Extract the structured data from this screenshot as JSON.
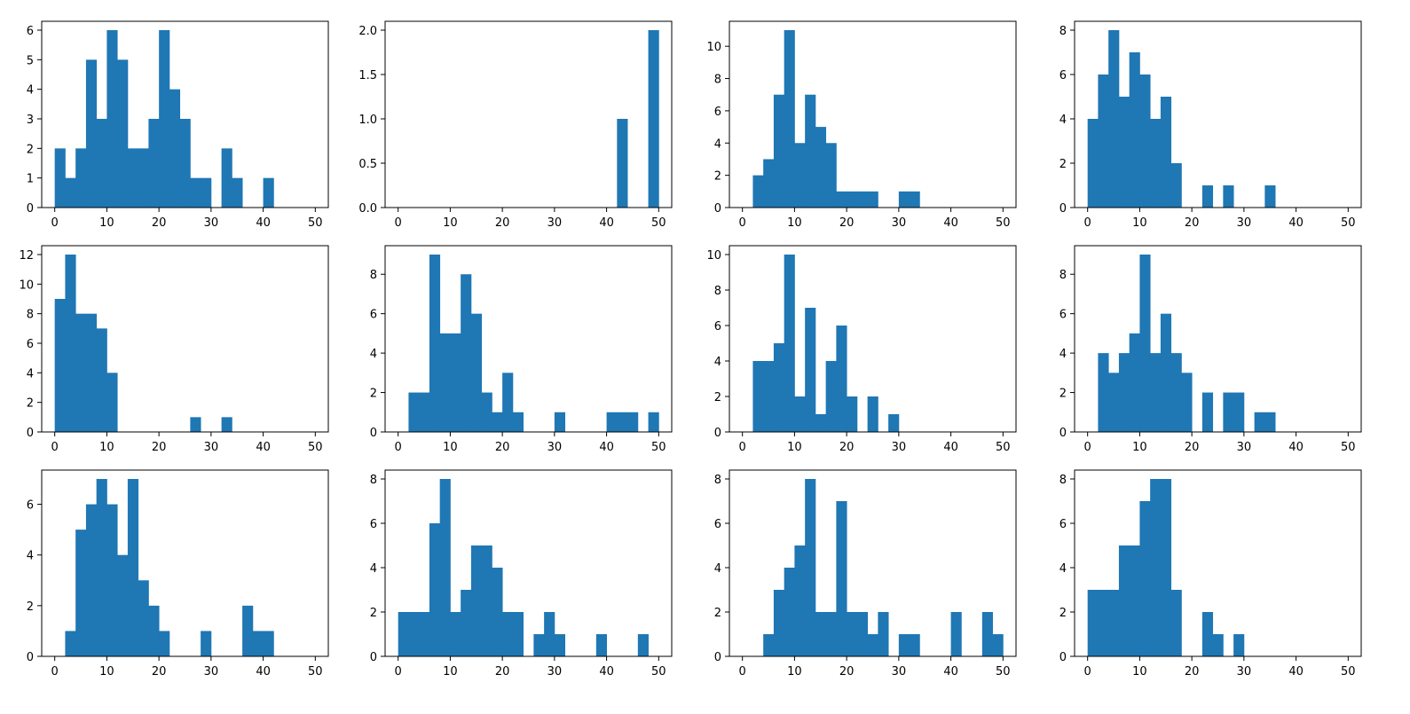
{
  "figure": {
    "background": "#ffffff",
    "bar_color": "#1f77b4"
  },
  "chart_data": [
    {
      "type": "bar",
      "bin_width": 2,
      "xlim": [
        -2.5,
        52.5
      ],
      "ylim": [
        0,
        6.3
      ],
      "xticks": [
        0,
        10,
        20,
        30,
        40,
        50
      ],
      "yticks": [
        0,
        1,
        2,
        3,
        4,
        5,
        6
      ],
      "bins_start": [
        0,
        2,
        4,
        6,
        8,
        10,
        12,
        14,
        16,
        18,
        20,
        22,
        24,
        26,
        28,
        30,
        32,
        34,
        36,
        38,
        40,
        42,
        44,
        46,
        48
      ],
      "values": [
        2,
        1,
        2,
        5,
        3,
        6,
        5,
        2,
        2,
        3,
        6,
        4,
        3,
        1,
        1,
        0,
        2,
        1,
        0,
        0,
        1,
        0,
        0,
        0,
        0
      ]
    },
    {
      "type": "bar",
      "bin_width": 2,
      "xlim": [
        -2.5,
        52.5
      ],
      "ylim": [
        0,
        2.1
      ],
      "xticks": [
        0,
        10,
        20,
        30,
        40,
        50
      ],
      "yticks": [
        0.0,
        0.5,
        1.0,
        1.5,
        2.0
      ],
      "ytick_labels": [
        "0.0",
        "0.5",
        "1.0",
        "1.5",
        "2.0"
      ],
      "bins_start": [
        0,
        2,
        4,
        6,
        8,
        10,
        12,
        14,
        16,
        18,
        20,
        22,
        24,
        26,
        28,
        30,
        32,
        34,
        36,
        38,
        40,
        42,
        44,
        46,
        48
      ],
      "values": [
        0,
        0,
        0,
        0,
        0,
        0,
        0,
        0,
        0,
        0,
        0,
        0,
        0,
        0,
        0,
        0,
        0,
        0,
        0,
        0,
        0,
        1,
        0,
        0,
        2
      ]
    },
    {
      "type": "bar",
      "bin_width": 2,
      "xlim": [
        -2.5,
        52.5
      ],
      "ylim": [
        0,
        11.55
      ],
      "xticks": [
        0,
        10,
        20,
        30,
        40,
        50
      ],
      "yticks": [
        0,
        2,
        4,
        6,
        8,
        10
      ],
      "bins_start": [
        0,
        2,
        4,
        6,
        8,
        10,
        12,
        14,
        16,
        18,
        20,
        22,
        24,
        26,
        28,
        30,
        32,
        34,
        36,
        38,
        40,
        42,
        44,
        46,
        48
      ],
      "values": [
        0,
        2,
        3,
        7,
        11,
        4,
        7,
        5,
        4,
        1,
        1,
        1,
        1,
        0,
        0,
        1,
        1,
        0,
        0,
        0,
        0,
        0,
        0,
        0,
        0
      ]
    },
    {
      "type": "bar",
      "bin_width": 2,
      "xlim": [
        -2.5,
        52.5
      ],
      "ylim": [
        0,
        8.4
      ],
      "xticks": [
        0,
        10,
        20,
        30,
        40,
        50
      ],
      "yticks": [
        0,
        2,
        4,
        6,
        8
      ],
      "bins_start": [
        0,
        2,
        4,
        6,
        8,
        10,
        12,
        14,
        16,
        18,
        20,
        22,
        24,
        26,
        28,
        30,
        32,
        34,
        36,
        38,
        40,
        42,
        44,
        46,
        48
      ],
      "values": [
        4,
        6,
        8,
        5,
        7,
        6,
        4,
        5,
        2,
        0,
        0,
        1,
        0,
        1,
        0,
        0,
        0,
        1,
        0,
        0,
        0,
        0,
        0,
        0,
        0
      ]
    },
    {
      "type": "bar",
      "bin_width": 2,
      "xlim": [
        -2.5,
        52.5
      ],
      "ylim": [
        0,
        12.6
      ],
      "xticks": [
        0,
        10,
        20,
        30,
        40,
        50
      ],
      "yticks": [
        0,
        2,
        4,
        6,
        8,
        10,
        12
      ],
      "bins_start": [
        0,
        2,
        4,
        6,
        8,
        10,
        12,
        14,
        16,
        18,
        20,
        22,
        24,
        26,
        28,
        30,
        32,
        34,
        36,
        38,
        40,
        42,
        44,
        46,
        48
      ],
      "values": [
        9,
        12,
        8,
        8,
        7,
        4,
        0,
        0,
        0,
        0,
        0,
        0,
        0,
        1,
        0,
        0,
        1,
        0,
        0,
        0,
        0,
        0,
        0,
        0,
        0
      ]
    },
    {
      "type": "bar",
      "bin_width": 2,
      "xlim": [
        -2.5,
        52.5
      ],
      "ylim": [
        0,
        9.45
      ],
      "xticks": [
        0,
        10,
        20,
        30,
        40,
        50
      ],
      "yticks": [
        0,
        2,
        4,
        6,
        8
      ],
      "bins_start": [
        0,
        2,
        4,
        6,
        8,
        10,
        12,
        14,
        16,
        18,
        20,
        22,
        24,
        26,
        28,
        30,
        32,
        34,
        36,
        38,
        40,
        42,
        44,
        46,
        48
      ],
      "values": [
        0,
        2,
        2,
        9,
        5,
        5,
        8,
        6,
        2,
        1,
        3,
        1,
        0,
        0,
        0,
        1,
        0,
        0,
        0,
        0,
        1,
        1,
        1,
        0,
        1
      ]
    },
    {
      "type": "bar",
      "bin_width": 2,
      "xlim": [
        -2.5,
        52.5
      ],
      "ylim": [
        0,
        10.5
      ],
      "xticks": [
        0,
        10,
        20,
        30,
        40,
        50
      ],
      "yticks": [
        0,
        2,
        4,
        6,
        8,
        10
      ],
      "bins_start": [
        0,
        2,
        4,
        6,
        8,
        10,
        12,
        14,
        16,
        18,
        20,
        22,
        24,
        26,
        28,
        30,
        32,
        34,
        36,
        38,
        40,
        42,
        44,
        46,
        48
      ],
      "values": [
        0,
        4,
        4,
        5,
        10,
        2,
        7,
        1,
        4,
        6,
        2,
        0,
        2,
        0,
        1,
        0,
        0,
        0,
        0,
        0,
        0,
        0,
        0,
        0,
        0
      ]
    },
    {
      "type": "bar",
      "bin_width": 2,
      "xlim": [
        -2.5,
        52.5
      ],
      "ylim": [
        0,
        9.45
      ],
      "xticks": [
        0,
        10,
        20,
        30,
        40,
        50
      ],
      "yticks": [
        0,
        2,
        4,
        6,
        8
      ],
      "bins_start": [
        0,
        2,
        4,
        6,
        8,
        10,
        12,
        14,
        16,
        18,
        20,
        22,
        24,
        26,
        28,
        30,
        32,
        34,
        36,
        38,
        40,
        42,
        44,
        46,
        48
      ],
      "values": [
        0,
        4,
        3,
        4,
        5,
        9,
        4,
        6,
        4,
        3,
        0,
        2,
        0,
        2,
        2,
        0,
        1,
        1,
        0,
        0,
        0,
        0,
        0,
        0,
        0
      ]
    },
    {
      "type": "bar",
      "bin_width": 2,
      "xlim": [
        -2.5,
        52.5
      ],
      "ylim": [
        0,
        7.35
      ],
      "xticks": [
        0,
        10,
        20,
        30,
        40,
        50
      ],
      "yticks": [
        0,
        2,
        4,
        6
      ],
      "bins_start": [
        0,
        2,
        4,
        6,
        8,
        10,
        12,
        14,
        16,
        18,
        20,
        22,
        24,
        26,
        28,
        30,
        32,
        34,
        36,
        38,
        40,
        42,
        44,
        46,
        48
      ],
      "values": [
        0,
        1,
        5,
        6,
        7,
        6,
        4,
        7,
        3,
        2,
        1,
        0,
        0,
        0,
        1,
        0,
        0,
        0,
        2,
        1,
        1,
        0,
        0,
        0,
        0
      ]
    },
    {
      "type": "bar",
      "bin_width": 2,
      "xlim": [
        -2.5,
        52.5
      ],
      "ylim": [
        0,
        8.4
      ],
      "xticks": [
        0,
        10,
        20,
        30,
        40,
        50
      ],
      "yticks": [
        0,
        2,
        4,
        6,
        8
      ],
      "bins_start": [
        0,
        2,
        4,
        6,
        8,
        10,
        12,
        14,
        16,
        18,
        20,
        22,
        24,
        26,
        28,
        30,
        32,
        34,
        36,
        38,
        40,
        42,
        44,
        46,
        48
      ],
      "values": [
        2,
        2,
        2,
        6,
        8,
        2,
        3,
        5,
        5,
        4,
        2,
        2,
        0,
        1,
        2,
        1,
        0,
        0,
        0,
        1,
        0,
        0,
        0,
        1,
        0
      ]
    },
    {
      "type": "bar",
      "bin_width": 2,
      "xlim": [
        -2.5,
        52.5
      ],
      "ylim": [
        0,
        8.4
      ],
      "xticks": [
        0,
        10,
        20,
        30,
        40,
        50
      ],
      "yticks": [
        0,
        2,
        4,
        6,
        8
      ],
      "bins_start": [
        0,
        2,
        4,
        6,
        8,
        10,
        12,
        14,
        16,
        18,
        20,
        22,
        24,
        26,
        28,
        30,
        32,
        34,
        36,
        38,
        40,
        42,
        44,
        46,
        48
      ],
      "values": [
        0,
        0,
        1,
        3,
        4,
        5,
        8,
        2,
        2,
        7,
        2,
        2,
        1,
        2,
        0,
        1,
        1,
        0,
        0,
        0,
        2,
        0,
        0,
        2,
        1
      ]
    },
    {
      "type": "bar",
      "bin_width": 2,
      "xlim": [
        -2.5,
        52.5
      ],
      "ylim": [
        0,
        8.4
      ],
      "xticks": [
        0,
        10,
        20,
        30,
        40,
        50
      ],
      "yticks": [
        0,
        2,
        4,
        6,
        8
      ],
      "bins_start": [
        0,
        2,
        4,
        6,
        8,
        10,
        12,
        14,
        16,
        18,
        20,
        22,
        24,
        26,
        28,
        30,
        32,
        34,
        36,
        38,
        40,
        42,
        44,
        46,
        48
      ],
      "values": [
        3,
        3,
        3,
        5,
        5,
        7,
        8,
        8,
        3,
        0,
        0,
        2,
        1,
        0,
        1,
        0,
        0,
        0,
        0,
        0,
        0,
        0,
        0,
        0,
        0
      ]
    }
  ]
}
